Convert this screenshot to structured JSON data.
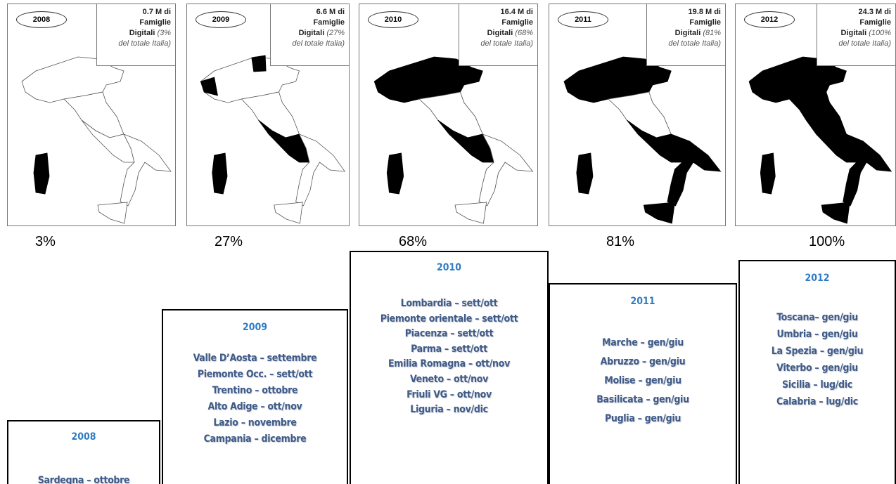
{
  "maps": [
    {
      "year": "2008",
      "lines": [
        "0.7 M di",
        "Famiglie",
        "Digitali",
        "(3%",
        "del totale Italia)"
      ],
      "share": "3%"
    },
    {
      "year": "2009",
      "lines": [
        "6.6 M di",
        "Famiglie",
        "Digitali",
        "(27%",
        "del totale Italia)"
      ],
      "share": "27%"
    },
    {
      "year": "2010",
      "lines": [
        "16.4 M di",
        "Famiglie",
        "Digitali",
        "(68%",
        "del totale Italia)"
      ],
      "share": "68%"
    },
    {
      "year": "2011",
      "lines": [
        "19.8 M di",
        "Famiglie",
        "Digitali",
        "(81%",
        "del totale Italia)"
      ],
      "share": "81%"
    },
    {
      "year": "2012",
      "lines": [
        "24.3 M di",
        "Famiglie",
        "Digitali",
        "(100%",
        "del totale Italia)"
      ],
      "share": "100%"
    }
  ],
  "timeline": [
    {
      "year": "2008",
      "items": [
        "Sardegna – ottobre"
      ]
    },
    {
      "year": "2009",
      "items": [
        "Valle D’Aosta – settembre",
        "Piemonte Occ. – sett/ott",
        "Trentino – ottobre",
        "Alto Adige – ott/nov",
        "Lazio – novembre",
        "Campania – dicembre"
      ]
    },
    {
      "year": "2010",
      "items": [
        "Lombardia – sett/ott",
        "Piemonte orientale – sett/ott",
        "Piacenza – sett/ott",
        "Parma – sett/ott",
        "Emilia Romagna – ott/nov",
        "Veneto – ott/nov",
        "Friuli VG – ott/nov",
        "Liguria – nov/dic"
      ]
    },
    {
      "year": "2011",
      "items": [
        "Marche – gen/giu",
        "Abruzzo – gen/giu",
        "Molise – gen/giu",
        "Basilicata – gen/giu",
        "Puglia – gen/giu"
      ]
    },
    {
      "year": "2012",
      "items": [
        "Toscana– gen/giu",
        "Umbria – gen/giu",
        "La Spezia – gen/giu",
        "Viterbo – gen/giu",
        "Sicilia – lug/dic",
        "Calabria – lug/dic"
      ]
    }
  ]
}
